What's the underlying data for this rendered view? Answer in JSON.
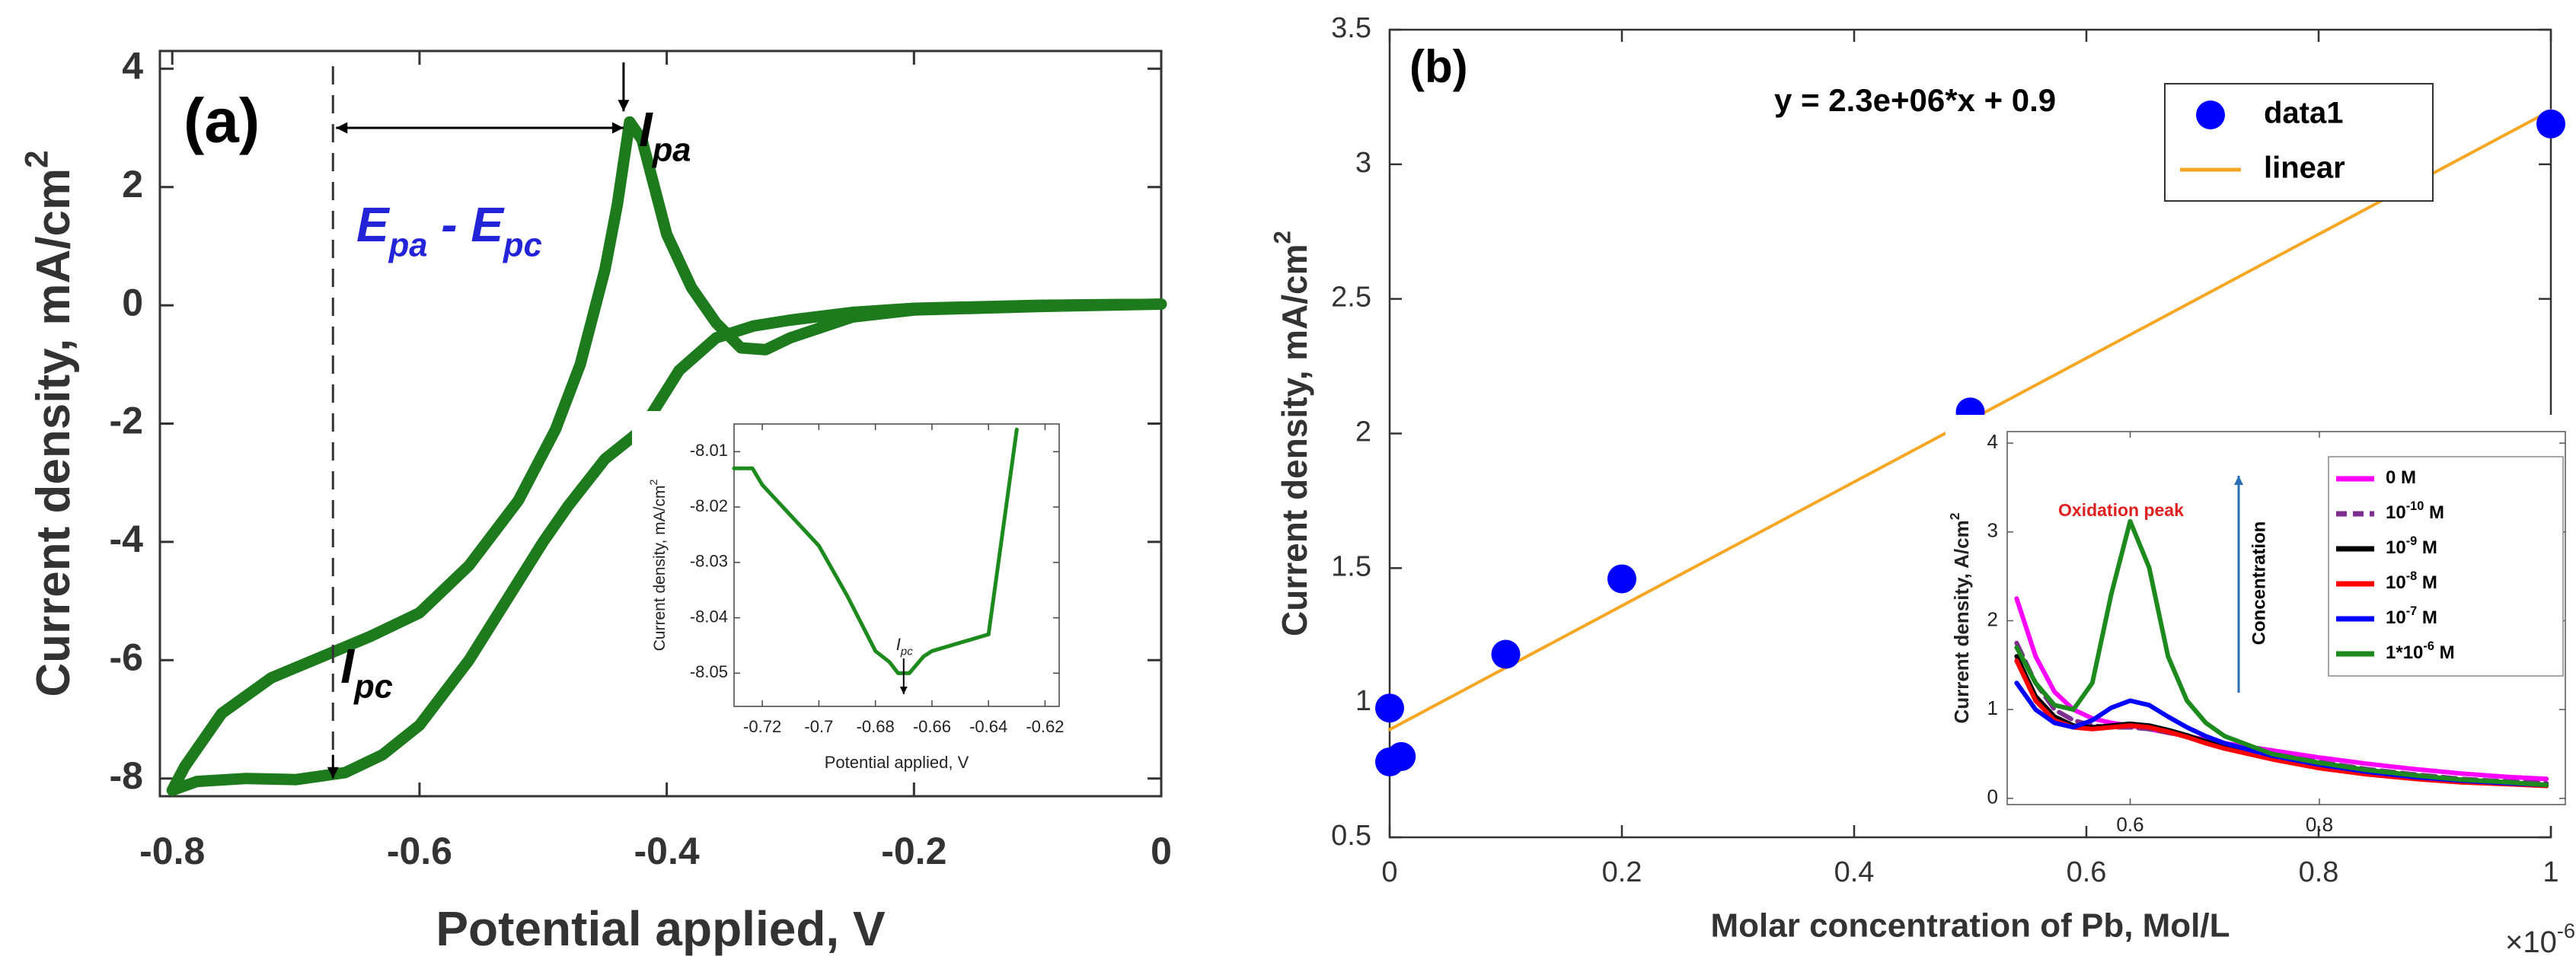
{
  "chart_data": [
    {
      "type": "line",
      "panel_label": "(a)",
      "xlabel": "Potential applied, V",
      "ylabel": [
        "Current density, mA/cm",
        "2"
      ],
      "xlim": [
        -0.81,
        0
      ],
      "ylim": [
        -8.3,
        4.3
      ],
      "xticks": [
        -0.8,
        -0.6,
        -0.4,
        -0.2,
        0
      ],
      "yticks": [
        -8,
        -6,
        -4,
        -2,
        0,
        2,
        4
      ],
      "x": [
        0,
        -0.1,
        -0.2,
        -0.25,
        -0.3,
        -0.33,
        -0.36,
        -0.39,
        -0.42,
        -0.45,
        -0.48,
        -0.5,
        -0.53,
        -0.56,
        -0.6,
        -0.63,
        -0.66,
        -0.7,
        -0.74,
        -0.78,
        -0.8,
        -0.79,
        -0.76,
        -0.72,
        -0.68,
        -0.64,
        -0.6,
        -0.56,
        -0.52,
        -0.49,
        -0.47,
        -0.45,
        -0.44,
        -0.43,
        -0.42,
        -0.41,
        -0.4,
        -0.38,
        -0.36,
        -0.34,
        -0.32,
        -0.3,
        -0.25,
        -0.2,
        -0.1,
        0
      ],
      "series": [
        {
          "color": "#1d7a1d",
          "values": [
            0.02,
            0,
            -0.05,
            -0.12,
            -0.25,
            -0.35,
            -0.55,
            -1.1,
            -2.1,
            -2.6,
            -3.4,
            -4.0,
            -5.0,
            -6.0,
            -7.1,
            -7.6,
            -7.9,
            -8.02,
            -8.0,
            -8.05,
            -8.2,
            -7.8,
            -6.9,
            -6.3,
            -5.95,
            -5.6,
            -5.2,
            -4.4,
            -3.3,
            -2.1,
            -1.0,
            0.6,
            1.7,
            3.1,
            2.8,
            2.0,
            1.2,
            0.3,
            -0.3,
            -0.72,
            -0.75,
            -0.55,
            -0.2,
            -0.08,
            -0.02,
            0.02
          ]
        }
      ],
      "reference_x": -0.67,
      "peak_separation": [
        "E",
        "pa",
        " - E",
        "pc"
      ],
      "anodic_peak": [
        "I",
        "pa"
      ],
      "cathodic_peak": [
        "I",
        "pc"
      ]
    },
    {
      "type": "line",
      "xlabel": "Potential applied, V",
      "ylabel": [
        "Current density, mA/cm",
        "2"
      ],
      "xlim": [
        -0.73,
        -0.615
      ],
      "ylim": [
        -8.056,
        -8.005
      ],
      "xticks": [
        -0.72,
        -0.7,
        -0.68,
        -0.66,
        -0.64,
        -0.62
      ],
      "yticks": [
        -8.01,
        -8.02,
        -8.03,
        -8.04,
        -8.05
      ],
      "x": [
        -0.73,
        -0.7235,
        -0.72,
        -0.7,
        -0.69,
        -0.68,
        -0.675,
        -0.672,
        -0.668,
        -0.663,
        -0.66,
        -0.64,
        -0.63
      ],
      "series": [
        {
          "color": "#1d8a1d",
          "values": [
            -8.013,
            -8.013,
            -8.016,
            -8.027,
            -8.036,
            -8.046,
            -8.048,
            -8.05,
            -8.05,
            -8.047,
            -8.046,
            -8.043,
            -8.006
          ]
        }
      ],
      "cathodic_peak": [
        "I",
        "pc"
      ]
    },
    {
      "type": "scatter",
      "panel_label": "(b)",
      "xlabel": "Molar concentration of Pb, Mol/L",
      "ylabel": [
        "Current density, mA/cm",
        "2"
      ],
      "x_multiplier": [
        "×10",
        "-6"
      ],
      "equation": "y = 2.3e+06*x + 0.9",
      "xlim": [
        0,
        1
      ],
      "ylim": [
        0.5,
        3.5
      ],
      "xticks": [
        0,
        0.2,
        0.4,
        0.6,
        0.8,
        1
      ],
      "yticks": [
        0.5,
        1,
        1.5,
        2,
        2.5,
        3,
        3.5
      ],
      "legend": "upper right",
      "series": [
        {
          "name": "data1",
          "mode": "markers",
          "color": "#0000ff",
          "x": [
            0,
            0,
            0.01,
            0.1,
            0.2,
            0.5,
            1
          ],
          "values": [
            0.98,
            0.78,
            0.8,
            1.18,
            1.46,
            2.08,
            3.15
          ]
        },
        {
          "name": "linear",
          "mode": "line",
          "color": "#f5a623",
          "x": [
            0,
            1
          ],
          "values": [
            0.9,
            3.2
          ]
        }
      ]
    },
    {
      "type": "line",
      "ylabel": [
        "Current density, A/cm",
        "2"
      ],
      "xlim": [
        0.47,
        1.06
      ],
      "ylim": [
        -0.07,
        4.13
      ],
      "xticks": [
        0.6,
        0.8
      ],
      "yticks": [
        0,
        1,
        2,
        3,
        4
      ],
      "annotation": "Oxidation peak",
      "arrow_label": "Concentration",
      "x": [
        0.48,
        0.5,
        0.52,
        0.54,
        0.56,
        0.58,
        0.6,
        0.62,
        0.64,
        0.66,
        0.68,
        0.7,
        0.75,
        0.8,
        0.85,
        0.9,
        0.95,
        1.0,
        1.04
      ],
      "series": [
        {
          "name": [
            "0 M"
          ],
          "color": "#ff00ff",
          "values": [
            2.25,
            1.6,
            1.2,
            1.0,
            0.9,
            0.85,
            0.82,
            0.78,
            0.74,
            0.7,
            0.66,
            0.62,
            0.54,
            0.46,
            0.39,
            0.33,
            0.28,
            0.24,
            0.22
          ]
        },
        {
          "name": [
            "10",
            "-10",
            " M"
          ],
          "color": "#7e2f8e",
          "dashed": true,
          "values": [
            1.75,
            1.3,
            1.0,
            0.88,
            0.82,
            0.8,
            0.8,
            0.78,
            0.74,
            0.7,
            0.65,
            0.6,
            0.5,
            0.41,
            0.33,
            0.27,
            0.22,
            0.19,
            0.17
          ]
        },
        {
          "name": [
            "10",
            "-9",
            " M"
          ],
          "color": "#000000",
          "values": [
            1.6,
            1.15,
            0.92,
            0.82,
            0.8,
            0.82,
            0.84,
            0.82,
            0.77,
            0.71,
            0.64,
            0.58,
            0.46,
            0.36,
            0.29,
            0.23,
            0.19,
            0.17,
            0.15
          ]
        },
        {
          "name": [
            "10",
            "-8",
            " M"
          ],
          "color": "#ff0000",
          "values": [
            1.55,
            1.1,
            0.88,
            0.8,
            0.78,
            0.8,
            0.82,
            0.8,
            0.75,
            0.69,
            0.62,
            0.56,
            0.44,
            0.34,
            0.27,
            0.22,
            0.18,
            0.16,
            0.14
          ]
        },
        {
          "name": [
            "10",
            "-7",
            " M"
          ],
          "color": "#0000ff",
          "values": [
            1.3,
            1.0,
            0.85,
            0.8,
            0.88,
            1.02,
            1.1,
            1.05,
            0.92,
            0.8,
            0.7,
            0.62,
            0.48,
            0.38,
            0.3,
            0.24,
            0.2,
            0.17,
            0.15
          ]
        },
        {
          "name": [
            "1*10",
            "-6",
            " M"
          ],
          "color": "#1d8a1d",
          "values": [
            1.7,
            1.3,
            1.05,
            1.0,
            1.3,
            2.3,
            3.12,
            2.6,
            1.6,
            1.1,
            0.85,
            0.7,
            0.5,
            0.4,
            0.32,
            0.26,
            0.21,
            0.18,
            0.15
          ]
        }
      ]
    }
  ]
}
